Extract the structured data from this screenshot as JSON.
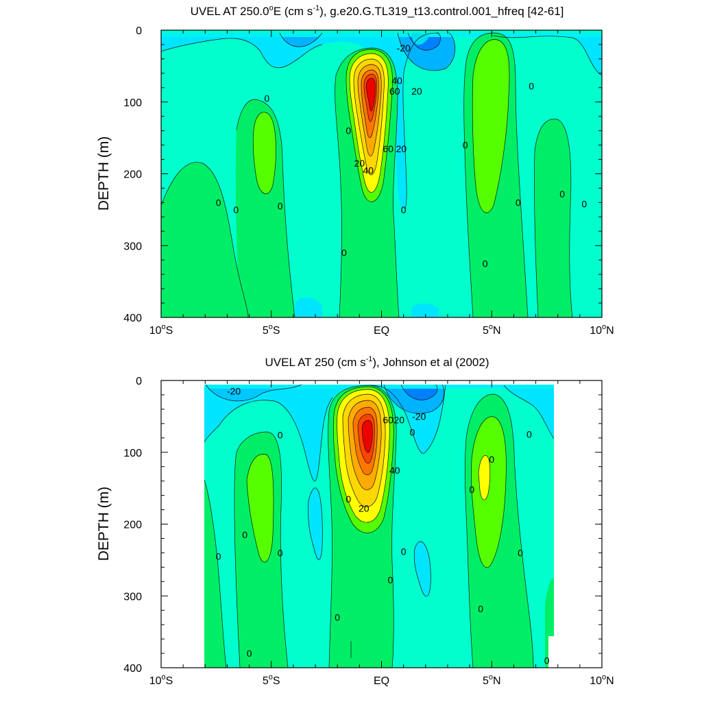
{
  "chart_data": [
    {
      "type": "contour",
      "title_prefix": "UVEL AT 250.0",
      "title_unit_base": "E (cm s",
      "title_unit_exp": "-1",
      "title_suffix": "), g.e20.G.TL319_t13.control.001_hfreq [42-61]",
      "ylabel": "DEPTH (m)",
      "xlim": [
        -10,
        10
      ],
      "ylim": [
        0,
        400
      ],
      "y_inverted": true,
      "x_ticks": [
        {
          "value": -10,
          "num": "10",
          "deg": "o",
          "hemi": "S"
        },
        {
          "value": -5,
          "num": "5",
          "deg": "o",
          "hemi": "S"
        },
        {
          "value": 0,
          "num": "EQ",
          "deg": "",
          "hemi": ""
        },
        {
          "value": 5,
          "num": "5",
          "deg": "o",
          "hemi": "N"
        },
        {
          "value": 10,
          "num": "10",
          "deg": "o",
          "hemi": "N"
        }
      ],
      "y_ticks": [
        "0",
        "100",
        "200",
        "300",
        "400"
      ],
      "contour_labels": [
        {
          "text": "-20",
          "x": 1.0,
          "y": 25
        },
        {
          "text": "40",
          "x": 0.7,
          "y": 70
        },
        {
          "text": "60",
          "x": 0.6,
          "y": 85
        },
        {
          "text": "20",
          "x": 1.6,
          "y": 85
        },
        {
          "text": "0",
          "x": -5.2,
          "y": 95
        },
        {
          "text": "0",
          "x": -1.5,
          "y": 140
        },
        {
          "text": "20",
          "x": 0.9,
          "y": 165
        },
        {
          "text": "60",
          "x": 0.3,
          "y": 165
        },
        {
          "text": "20",
          "x": -1.0,
          "y": 185
        },
        {
          "text": "40",
          "x": -0.6,
          "y": 195
        },
        {
          "text": "0",
          "x": 3.8,
          "y": 160
        },
        {
          "text": "0",
          "x": 6.8,
          "y": 78
        },
        {
          "text": "0",
          "x": -7.4,
          "y": 240
        },
        {
          "text": "0",
          "x": -6.6,
          "y": 250
        },
        {
          "text": "0",
          "x": -4.6,
          "y": 245
        },
        {
          "text": "0",
          "x": 1.0,
          "y": 250
        },
        {
          "text": "0",
          "x": 6.2,
          "y": 240
        },
        {
          "text": "0",
          "x": 8.2,
          "y": 228
        },
        {
          "text": "0",
          "x": 9.2,
          "y": 242
        },
        {
          "text": "0",
          "x": -1.7,
          "y": 310
        },
        {
          "text": "0",
          "x": 4.7,
          "y": 325
        }
      ]
    },
    {
      "type": "contour",
      "title_prefix": "UVEL AT 250 (cm s",
      "title_unit_exp": "-1",
      "title_suffix": "), Johnson et al (2002)",
      "ylabel": "DEPTH (m)",
      "xlim": [
        -10,
        10
      ],
      "ylim": [
        0,
        400
      ],
      "y_inverted": true,
      "x_ticks": [
        {
          "value": -10,
          "num": "10",
          "deg": "o",
          "hemi": "S"
        },
        {
          "value": -5,
          "num": "5",
          "deg": "o",
          "hemi": "S"
        },
        {
          "value": 0,
          "num": "EQ",
          "deg": "",
          "hemi": ""
        },
        {
          "value": 5,
          "num": "5",
          "deg": "o",
          "hemi": "N"
        },
        {
          "value": 10,
          "num": "10",
          "deg": "o",
          "hemi": "N"
        }
      ],
      "y_ticks": [
        "0",
        "100",
        "200",
        "300",
        "400"
      ],
      "contour_labels": [
        {
          "text": "-20",
          "x": -6.7,
          "y": 15
        },
        {
          "text": "60",
          "x": 0.3,
          "y": 55
        },
        {
          "text": "20",
          "x": 0.8,
          "y": 55
        },
        {
          "text": "-20",
          "x": 1.7,
          "y": 50
        },
        {
          "text": "0",
          "x": -4.6,
          "y": 76
        },
        {
          "text": "0",
          "x": 1.4,
          "y": 72
        },
        {
          "text": "0",
          "x": 5.0,
          "y": 110
        },
        {
          "text": "40",
          "x": 0.6,
          "y": 125
        },
        {
          "text": "0",
          "x": 4.1,
          "y": 152
        },
        {
          "text": "0",
          "x": 6.7,
          "y": 75
        },
        {
          "text": "0",
          "x": -1.5,
          "y": 165
        },
        {
          "text": "20",
          "x": -0.8,
          "y": 178
        },
        {
          "text": "0",
          "x": -6.2,
          "y": 215
        },
        {
          "text": "0",
          "x": -7.4,
          "y": 245
        },
        {
          "text": "0",
          "x": -4.6,
          "y": 240
        },
        {
          "text": "0",
          "x": 1.0,
          "y": 238
        },
        {
          "text": "0",
          "x": 6.3,
          "y": 240
        },
        {
          "text": "0",
          "x": 0.4,
          "y": 278
        },
        {
          "text": "0",
          "x": 4.5,
          "y": 318
        },
        {
          "text": "0",
          "x": -2.0,
          "y": 330
        },
        {
          "text": "0",
          "x": -6.0,
          "y": 380
        },
        {
          "text": "0",
          "x": 7.5,
          "y": 390
        }
      ]
    }
  ],
  "colors": {
    "background": "#00ffcc",
    "neg20": "#00e5ff",
    "neg40": "#00b3ff",
    "neg60": "#0080ff",
    "zero_to_20": "#00ee66",
    "pos20": "#55ff00",
    "pos40": "#ffff00",
    "pos60": "#ffd700",
    "pos80": "#ffaa00",
    "pos100": "#ff7700",
    "pos120": "#ff4400",
    "pos140": "#ee0000"
  }
}
